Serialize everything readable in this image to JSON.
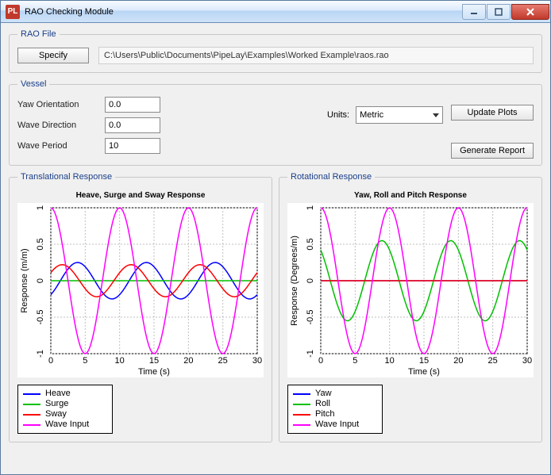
{
  "window": {
    "title": "RAO Checking Module",
    "icon": "PL"
  },
  "rao_file": {
    "legend": "RAO File",
    "specify_label": "Specify",
    "path": "C:\\Users\\Public\\Documents\\PipeLay\\Examples\\Worked Example\\raos.rao"
  },
  "vessel": {
    "legend": "Vessel",
    "fields": {
      "yaw_label": "Yaw Orientation",
      "yaw_value": "0.0",
      "wave_dir_label": "Wave Direction",
      "wave_dir_value": "0.0",
      "wave_period_label": "Wave Period",
      "wave_period_value": "10"
    },
    "units_label": "Units:",
    "units_value": "Metric",
    "update_plots_label": "Update Plots",
    "generate_report_label": "Generate Report"
  },
  "translational": {
    "legend": "Translational Response",
    "chart": {
      "type": "line",
      "title": "Heave, Surge and Sway Response",
      "xlabel": "Time (s)",
      "ylabel": "Response (m/m)",
      "xlim": [
        0,
        30
      ],
      "xtick_step": 5,
      "ylim": [
        -1,
        1
      ],
      "yticks": [
        -1,
        -0.5,
        0,
        0.5,
        1
      ],
      "ytick_labels": [
        "-1",
        "-0.5",
        "0",
        "0.5",
        "1"
      ],
      "background_color": "#ffffff",
      "grid_color": "#bfbfbf",
      "axis_color": "#000000",
      "series": [
        {
          "name": "Heave",
          "color": "#0000ff",
          "amplitude": 0.25,
          "period": 10,
          "phase_deg": -50,
          "width": 1.5,
          "type": "sine"
        },
        {
          "name": "Surge",
          "color": "#00c000",
          "amplitude": 0.0,
          "period": 10,
          "phase_deg": 0,
          "width": 1.5,
          "type": "flat"
        },
        {
          "name": "Sway",
          "color": "#ff0000",
          "amplitude": 0.22,
          "period": 10,
          "phase_deg": 30,
          "width": 1.5,
          "type": "sine"
        },
        {
          "name": "Wave Input",
          "color": "#ff00ff",
          "amplitude": 1.0,
          "period": 10,
          "phase_deg": 90,
          "width": 1.5,
          "type": "sine"
        }
      ],
      "legend_items": [
        {
          "label": "Heave",
          "color": "#0000ff"
        },
        {
          "label": "Surge",
          "color": "#00c000"
        },
        {
          "label": "Sway",
          "color": "#ff0000"
        },
        {
          "label": "Wave Input",
          "color": "#ff00ff"
        }
      ]
    }
  },
  "rotational": {
    "legend": "Rotational Response",
    "chart": {
      "type": "line",
      "title": "Yaw, Roll and Pitch Response",
      "xlabel": "Time (s)",
      "ylabel": "Response (Degrees/m)",
      "xlim": [
        0,
        30
      ],
      "xtick_step": 5,
      "ylim": [
        -1,
        1
      ],
      "yticks": [
        -1,
        -0.5,
        0,
        0.5,
        1
      ],
      "ytick_labels": [
        "-1",
        "-0.5",
        "0",
        "0.5",
        "1"
      ],
      "background_color": "#ffffff",
      "grid_color": "#bfbfbf",
      "axis_color": "#000000",
      "series": [
        {
          "name": "Yaw",
          "color": "#0000ff",
          "amplitude": 0.0,
          "period": 10,
          "phase_deg": 0,
          "width": 1.5,
          "type": "flat"
        },
        {
          "name": "Roll",
          "color": "#00c000",
          "amplitude": 0.55,
          "period": 10,
          "phase_deg": 130,
          "width": 1.5,
          "type": "sine"
        },
        {
          "name": "Pitch",
          "color": "#ff0000",
          "amplitude": 0.0,
          "period": 10,
          "phase_deg": 0,
          "width": 1.5,
          "type": "flat"
        },
        {
          "name": "Wave Input",
          "color": "#ff00ff",
          "amplitude": 1.0,
          "period": 10,
          "phase_deg": 90,
          "width": 1.5,
          "type": "sine"
        }
      ],
      "legend_items": [
        {
          "label": "Yaw",
          "color": "#0000ff"
        },
        {
          "label": "Roll",
          "color": "#00c000"
        },
        {
          "label": "Pitch",
          "color": "#ff0000"
        },
        {
          "label": "Wave Input",
          "color": "#ff00ff"
        }
      ]
    }
  }
}
